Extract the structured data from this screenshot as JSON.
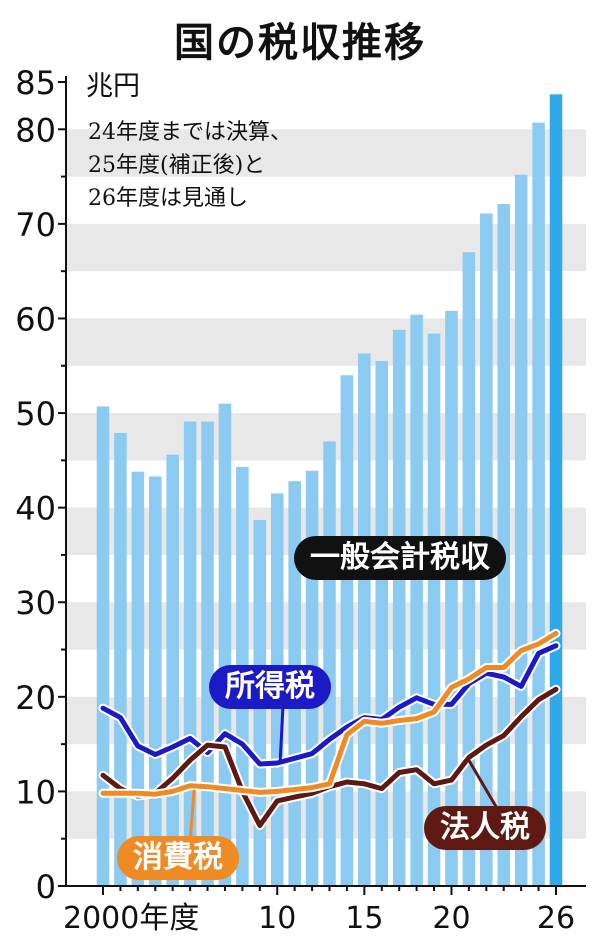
{
  "title": "国の税収推移",
  "unit_label": "兆円",
  "note": {
    "line1": "24年度までは決算、",
    "line2": "25年度(補正後)と",
    "line3": "26年度は見通し"
  },
  "labels": {
    "total": "一般会計税収",
    "income": "所得税",
    "corporate": "法人税",
    "consumption": "消費税"
  },
  "colors": {
    "bar": "#8ccbf1",
    "bar_highlight": "#2fa9ea",
    "income_line": "#1c19c6",
    "corporate_line": "#5e1a12",
    "consumption_line": "#f08a24",
    "band": "#e8e8e8"
  },
  "chart_data": {
    "type": "bar",
    "title": "国の税収推移",
    "ylabel": "兆円",
    "ylim": [
      0,
      85
    ],
    "yticks": [
      0,
      10,
      20,
      30,
      40,
      50,
      60,
      70,
      80,
      85
    ],
    "x": [
      2000,
      2001,
      2002,
      2003,
      2004,
      2005,
      2006,
      2007,
      2008,
      2009,
      2010,
      2011,
      2012,
      2013,
      2014,
      2015,
      2016,
      2017,
      2018,
      2019,
      2020,
      2021,
      2022,
      2023,
      2024,
      2025,
      2026
    ],
    "xtick_labels": [
      {
        "x": 2000,
        "label": "2000年度"
      },
      {
        "x": 2010,
        "label": "10"
      },
      {
        "x": 2015,
        "label": "15"
      },
      {
        "x": 2020,
        "label": "20"
      },
      {
        "x": 2026,
        "label": "26"
      }
    ],
    "series": [
      {
        "name": "一般会計税収",
        "kind": "bar",
        "values": [
          50.7,
          47.9,
          43.8,
          43.3,
          45.6,
          49.1,
          49.1,
          51.0,
          44.3,
          38.7,
          41.5,
          42.8,
          43.9,
          47.0,
          54.0,
          56.3,
          55.5,
          58.8,
          60.4,
          58.4,
          60.8,
          67.0,
          71.1,
          72.1,
          75.2,
          80.7,
          83.7
        ]
      },
      {
        "name": "所得税",
        "kind": "line",
        "values": [
          18.8,
          17.8,
          14.8,
          13.9,
          14.7,
          15.6,
          14.1,
          16.1,
          15.0,
          12.9,
          13.0,
          13.5,
          14.0,
          15.5,
          16.8,
          17.8,
          17.6,
          18.9,
          19.9,
          19.2,
          19.2,
          21.4,
          22.5,
          22.1,
          21.1,
          24.6,
          25.4
        ]
      },
      {
        "name": "法人税",
        "kind": "line",
        "values": [
          11.7,
          10.3,
          9.5,
          9.8,
          11.4,
          13.3,
          14.9,
          14.7,
          10.0,
          6.4,
          9.0,
          9.4,
          9.8,
          10.5,
          11.0,
          10.8,
          10.3,
          12.0,
          12.3,
          10.8,
          11.2,
          13.6,
          14.9,
          15.9,
          17.9,
          19.7,
          20.8
        ]
      },
      {
        "name": "消費税",
        "kind": "line",
        "values": [
          9.8,
          9.8,
          9.8,
          9.7,
          10.0,
          10.6,
          10.5,
          10.3,
          10.1,
          9.9,
          10.0,
          10.2,
          10.4,
          10.8,
          16.0,
          17.4,
          17.2,
          17.5,
          17.7,
          18.4,
          21.0,
          21.9,
          23.1,
          23.1,
          24.9,
          25.6,
          26.7
        ]
      }
    ],
    "grid": "horizontal bands every 5",
    "legend": "inline labels"
  }
}
